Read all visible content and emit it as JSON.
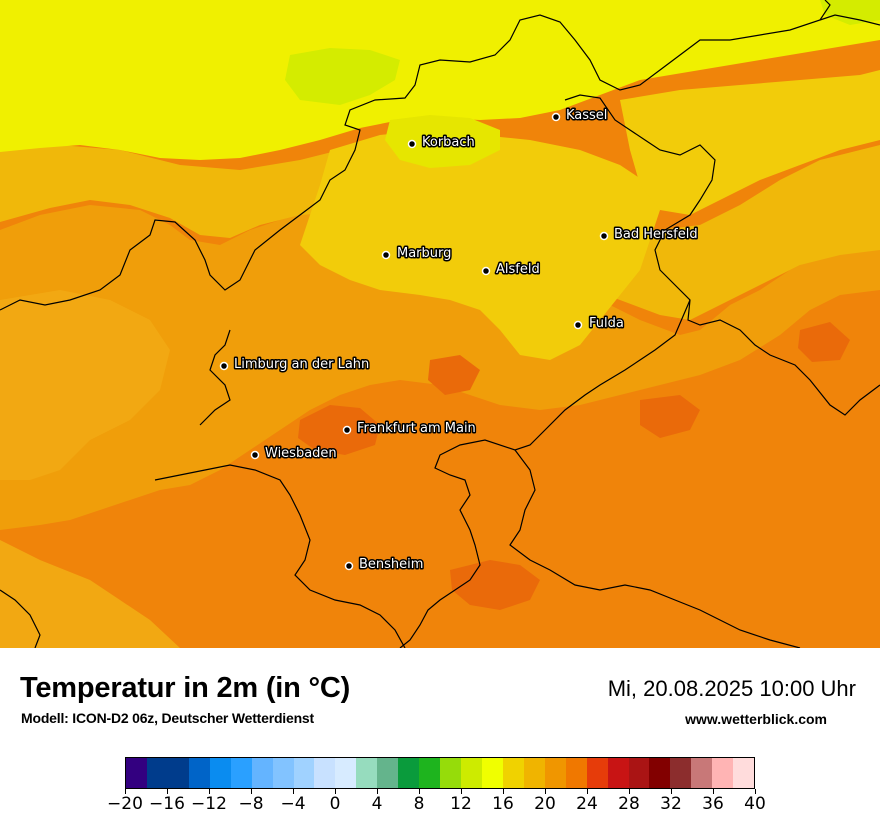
{
  "map": {
    "cities": [
      {
        "name": "Kassel"
      },
      {
        "name": "Korbach"
      },
      {
        "name": "Bad Hersfeld"
      },
      {
        "name": "Marburg"
      },
      {
        "name": "Alsfeld"
      },
      {
        "name": "Fulda"
      },
      {
        "name": "Limburg an der Lahn"
      },
      {
        "name": "Frankfurt am Main"
      },
      {
        "name": "Wiesbaden"
      },
      {
        "name": "Bensheim"
      }
    ]
  },
  "header": {
    "title": "Temperatur in 2m (in °C)",
    "model": "Modell: ICON-D2 06z, Deutscher Wetterdienst",
    "datetime": "Mi, 20.08.2025 10:00 Uhr",
    "website": "www.wetterblick.com"
  },
  "legend": {
    "ticks": [
      "−20",
      "−16",
      "−12",
      "−8",
      "−4",
      "0",
      "4",
      "8",
      "12",
      "16",
      "20",
      "24",
      "28",
      "32",
      "36",
      "40"
    ],
    "colors": [
      "#330080",
      "#003c8c",
      "#003c8c",
      "#0064c8",
      "#0a8cf0",
      "#2aa0ff",
      "#64b4ff",
      "#82c3ff",
      "#a0d2ff",
      "#c8e1ff",
      "#d7ebff",
      "#96dcbe",
      "#64b48c",
      "#0a9b3c",
      "#1eb41e",
      "#96dc0a",
      "#cdeb00",
      "#f0ff00",
      "#f0d200",
      "#f0b400",
      "#f09600",
      "#f07800",
      "#e63c0a",
      "#c81414",
      "#aa1414",
      "#820000",
      "#8c2d2d",
      "#c87878",
      "#ffb4b4",
      "#ffdcdc"
    ]
  }
}
